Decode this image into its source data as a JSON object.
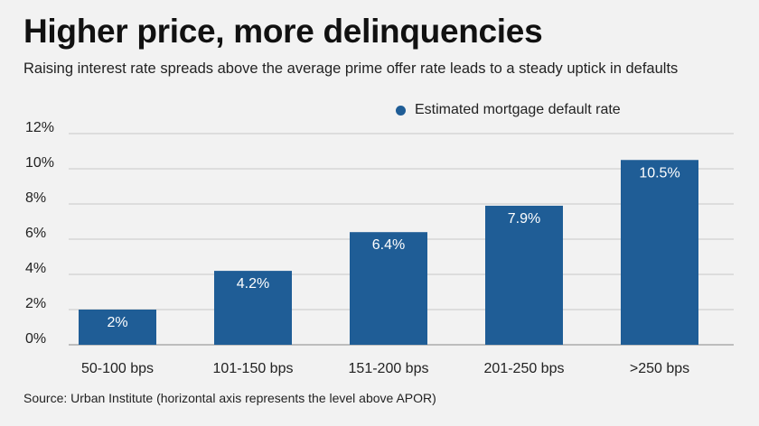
{
  "header": {
    "title": "Higher price, more delinquencies",
    "subtitle": "Raising interest rate spreads above the average prime offer rate leads to a steady uptick in defaults"
  },
  "footer": {
    "source": "Source: Urban Institute (horizontal axis represents the level above APOR)"
  },
  "colors": {
    "bar": "#1f5d96",
    "grid": "#c8c8c8",
    "background": "#f2f2f2"
  },
  "chart_data": {
    "type": "bar",
    "categories": [
      "50-100 bps",
      "101-150 bps",
      "151-200 bps",
      "201-250 bps",
      ">250 bps"
    ],
    "series": [
      {
        "name": "Estimated mortgage default rate",
        "values": [
          2,
          4.2,
          6.4,
          7.9,
          10.5
        ],
        "labels": [
          "2%",
          "4.2%",
          "6.4%",
          "7.9%",
          "10.5%"
        ]
      }
    ],
    "y_ticks": [
      0,
      2,
      4,
      6,
      8,
      10,
      12
    ],
    "y_tick_labels": [
      "0%",
      "2%",
      "4%",
      "6%",
      "8%",
      "10%",
      "12%"
    ],
    "ylim": [
      0,
      12
    ],
    "grid": true,
    "legend_position": "top-right"
  }
}
